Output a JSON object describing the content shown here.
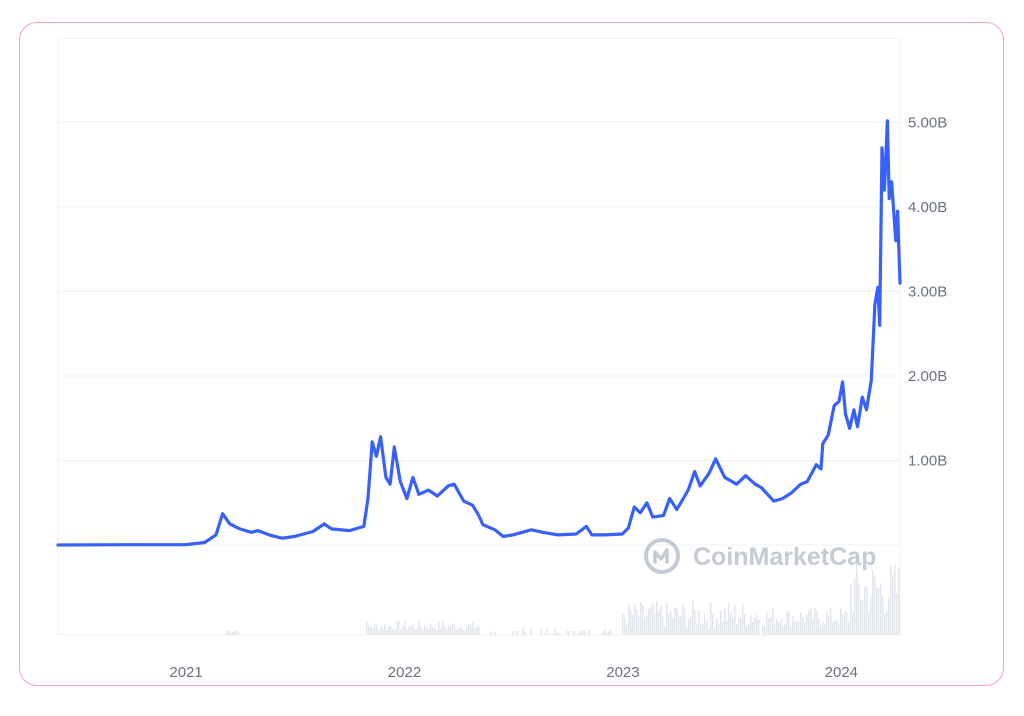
{
  "colors": {
    "line": "#3861fb",
    "grid": "#eef0f3",
    "volume": "#e3e6ea",
    "card_border": "#f3a6ad",
    "watermark": "#c5cbd4"
  },
  "watermark": {
    "text": "CoinMarketCap",
    "icon": "coinmarketcap-logo-icon"
  },
  "chart_data": {
    "type": "line",
    "title": "",
    "xlabel": "",
    "ylabel": "",
    "x_ticks": [
      "2021",
      "2022",
      "2023",
      "2024"
    ],
    "y_ticks": [
      "1.00B",
      "2.00B",
      "3.00B",
      "4.00B",
      "5.00B"
    ],
    "ylim": [
      0,
      5.5
    ],
    "grid": true,
    "series": [
      {
        "values_billion_by_date": [
          [
            "2020-06-01",
            0.0
          ],
          [
            "2020-10-01",
            0.003
          ],
          [
            "2021-01-01",
            0.005
          ],
          [
            "2021-02-01",
            0.03
          ],
          [
            "2021-02-20",
            0.12
          ],
          [
            "2021-03-03",
            0.37
          ],
          [
            "2021-03-15",
            0.25
          ],
          [
            "2021-04-01",
            0.19
          ],
          [
            "2021-04-20",
            0.15
          ],
          [
            "2021-05-01",
            0.17
          ],
          [
            "2021-05-20",
            0.12
          ],
          [
            "2021-06-10",
            0.08
          ],
          [
            "2021-07-01",
            0.1
          ],
          [
            "2021-08-01",
            0.16
          ],
          [
            "2021-08-20",
            0.25
          ],
          [
            "2021-09-01",
            0.19
          ],
          [
            "2021-10-01",
            0.17
          ],
          [
            "2021-10-25",
            0.22
          ],
          [
            "2021-11-01",
            0.55
          ],
          [
            "2021-11-08",
            1.22
          ],
          [
            "2021-11-15",
            1.05
          ],
          [
            "2021-11-22",
            1.28
          ],
          [
            "2021-12-01",
            0.8
          ],
          [
            "2021-12-08",
            0.72
          ],
          [
            "2021-12-15",
            1.16
          ],
          [
            "2021-12-25",
            0.75
          ],
          [
            "2022-01-05",
            0.55
          ],
          [
            "2022-01-15",
            0.8
          ],
          [
            "2022-01-25",
            0.6
          ],
          [
            "2022-02-10",
            0.65
          ],
          [
            "2022-02-25",
            0.58
          ],
          [
            "2022-03-15",
            0.7
          ],
          [
            "2022-03-25",
            0.72
          ],
          [
            "2022-04-10",
            0.52
          ],
          [
            "2022-04-25",
            0.47
          ],
          [
            "2022-05-05",
            0.35
          ],
          [
            "2022-05-12",
            0.24
          ],
          [
            "2022-06-01",
            0.18
          ],
          [
            "2022-06-15",
            0.1
          ],
          [
            "2022-07-01",
            0.12
          ],
          [
            "2022-08-01",
            0.18
          ],
          [
            "2022-08-20",
            0.15
          ],
          [
            "2022-09-15",
            0.12
          ],
          [
            "2022-10-15",
            0.13
          ],
          [
            "2022-11-01",
            0.22
          ],
          [
            "2022-11-10",
            0.12
          ],
          [
            "2022-12-01",
            0.12
          ],
          [
            "2022-12-31",
            0.13
          ],
          [
            "2023-01-10",
            0.2
          ],
          [
            "2023-01-20",
            0.45
          ],
          [
            "2023-01-30",
            0.38
          ],
          [
            "2023-02-10",
            0.5
          ],
          [
            "2023-02-20",
            0.33
          ],
          [
            "2023-03-10",
            0.35
          ],
          [
            "2023-03-20",
            0.55
          ],
          [
            "2023-04-01",
            0.42
          ],
          [
            "2023-04-20",
            0.65
          ],
          [
            "2023-05-01",
            0.87
          ],
          [
            "2023-05-10",
            0.7
          ],
          [
            "2023-05-25",
            0.85
          ],
          [
            "2023-06-05",
            1.02
          ],
          [
            "2023-06-20",
            0.8
          ],
          [
            "2023-07-10",
            0.72
          ],
          [
            "2023-07-25",
            0.82
          ],
          [
            "2023-08-10",
            0.72
          ],
          [
            "2023-08-20",
            0.68
          ],
          [
            "2023-09-10",
            0.52
          ],
          [
            "2023-09-25",
            0.55
          ],
          [
            "2023-10-10",
            0.62
          ],
          [
            "2023-10-25",
            0.72
          ],
          [
            "2023-11-05",
            0.75
          ],
          [
            "2023-11-20",
            0.95
          ],
          [
            "2023-11-28",
            0.9
          ],
          [
            "2023-12-01",
            1.2
          ],
          [
            "2023-12-10",
            1.3
          ],
          [
            "2023-12-20",
            1.65
          ],
          [
            "2023-12-28",
            1.7
          ],
          [
            "2024-01-03",
            1.93
          ],
          [
            "2024-01-08",
            1.55
          ],
          [
            "2024-01-15",
            1.38
          ],
          [
            "2024-01-22",
            1.6
          ],
          [
            "2024-01-28",
            1.4
          ],
          [
            "2024-02-05",
            1.75
          ],
          [
            "2024-02-12",
            1.6
          ],
          [
            "2024-02-20",
            1.95
          ],
          [
            "2024-02-26",
            2.85
          ],
          [
            "2024-03-02",
            3.05
          ],
          [
            "2024-03-05",
            2.6
          ],
          [
            "2024-03-09",
            4.7
          ],
          [
            "2024-03-13",
            4.2
          ],
          [
            "2024-03-18",
            5.02
          ],
          [
            "2024-03-21",
            4.1
          ],
          [
            "2024-03-25",
            4.3
          ],
          [
            "2024-03-28",
            4.0
          ],
          [
            "2024-04-01",
            3.6
          ],
          [
            "2024-04-04",
            3.95
          ],
          [
            "2024-04-08",
            3.1
          ]
        ]
      }
    ]
  }
}
